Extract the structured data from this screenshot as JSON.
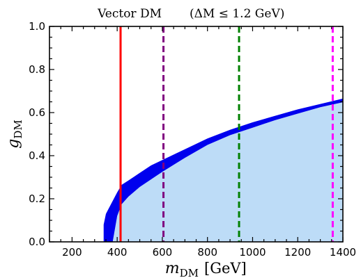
{
  "chart_data": {
    "type": "area",
    "title_left": "Vector DM",
    "title_right": "(ΔM ≤ 1.2 GeV)",
    "xlabel_var": "m",
    "xlabel_sub": "DM",
    "xlabel_unit": "[GeV]",
    "ylabel_var": "g",
    "ylabel_sub": "DM",
    "xlim": [
      100,
      1400
    ],
    "ylim": [
      0.0,
      1.0
    ],
    "xticks": [
      200,
      400,
      600,
      800,
      1000,
      1200,
      1400
    ],
    "yticks": [
      0.0,
      0.2,
      0.4,
      0.6,
      0.8,
      1.0
    ],
    "xtick_labels": [
      "200",
      "400",
      "600",
      "800",
      "1000",
      "1200",
      "1400"
    ],
    "ytick_labels": [
      "0.0",
      "0.2",
      "0.4",
      "0.6",
      "0.8",
      "1.0"
    ],
    "band": {
      "color": "#0000ee",
      "x": [
        340,
        350,
        360,
        380,
        400,
        420,
        450,
        500,
        550,
        600,
        700,
        800,
        900,
        1000,
        1100,
        1200,
        1300,
        1400
      ],
      "upper": [
        0.08,
        0.13,
        0.15,
        0.19,
        0.23,
        0.265,
        0.285,
        0.32,
        0.355,
        0.38,
        0.43,
        0.48,
        0.52,
        0.555,
        0.585,
        0.615,
        0.64,
        0.665
      ],
      "lower": [
        0.0,
        0.0,
        0.0,
        0.0,
        0.12,
        0.175,
        0.21,
        0.255,
        0.29,
        0.325,
        0.39,
        0.45,
        0.495,
        0.53,
        0.565,
        0.595,
        0.625,
        0.648
      ]
    },
    "excluded_region_color": "#bddcf7",
    "vlines": [
      {
        "x": 415,
        "color": "#ff0000",
        "style": "solid"
      },
      {
        "x": 605,
        "color": "#800080",
        "style": "dashed"
      },
      {
        "x": 940,
        "color": "#008000",
        "style": "dashed"
      },
      {
        "x": 1355,
        "color": "#ff00ff",
        "style": "dashed"
      }
    ]
  }
}
